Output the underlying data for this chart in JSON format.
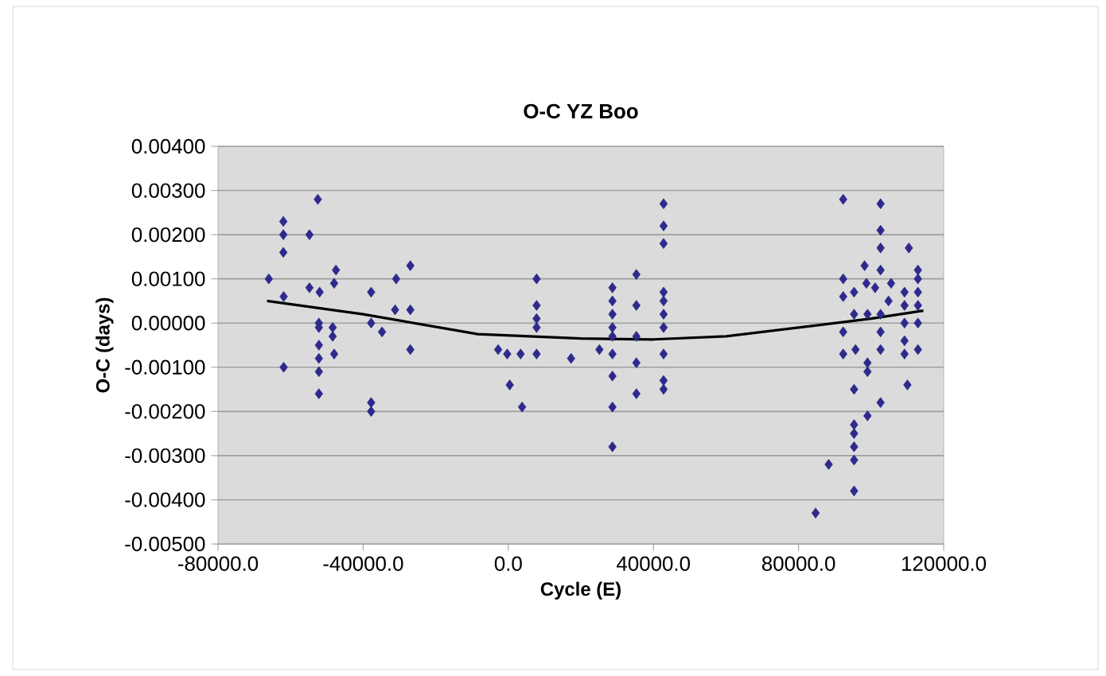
{
  "chart_data": {
    "type": "scatter",
    "title": "O-C YZ Boo",
    "xlabel": "Cycle (E)",
    "ylabel": "O-C (days)",
    "xlim": [
      -80000,
      120000
    ],
    "ylim": [
      -0.005,
      0.004
    ],
    "xticks": [
      {
        "value": -80000,
        "label": "-80000.0"
      },
      {
        "value": -40000,
        "label": "-40000.0"
      },
      {
        "value": 0,
        "label": "0.0"
      },
      {
        "value": 40000,
        "label": "40000.0"
      },
      {
        "value": 80000,
        "label": "80000.0"
      },
      {
        "value": 120000,
        "label": "120000.0"
      }
    ],
    "yticks": [
      {
        "value": 0.004,
        "label": "0.00400"
      },
      {
        "value": 0.003,
        "label": "0.00300"
      },
      {
        "value": 0.002,
        "label": "0.00200"
      },
      {
        "value": 0.001,
        "label": "0.00100"
      },
      {
        "value": 0,
        "label": "0.00000"
      },
      {
        "value": -0.001,
        "label": "-0.00100"
      },
      {
        "value": -0.002,
        "label": "-0.00200"
      },
      {
        "value": -0.003,
        "label": "-0.00300"
      },
      {
        "value": -0.004,
        "label": "-0.00400"
      },
      {
        "value": -0.005,
        "label": "-0.00500"
      }
    ],
    "grid": "y",
    "marker": "diamond",
    "series": [
      {
        "color": "#2e2a8c",
        "x": [
          -52500,
          -62000,
          -62000,
          -62000,
          -54800,
          -66000,
          -61900,
          -61900,
          -54800,
          -52000,
          -47500,
          -48000,
          -52200,
          -52200,
          -48400,
          -48400,
          -52200,
          -48000,
          -52200,
          -52200,
          -52200,
          -37800,
          -37800,
          -34800,
          -37800,
          -37800,
          -30900,
          -31200,
          -27000,
          -27000,
          -27000,
          -2800,
          -300,
          3400,
          400,
          3800,
          7800,
          7800,
          7800,
          7800,
          7800,
          17300,
          25100,
          28700,
          28700,
          28700,
          28700,
          28700,
          28700,
          28700,
          28700,
          28700,
          35300,
          35300,
          35300,
          35300,
          35300,
          42800,
          42800,
          42800,
          42800,
          42800,
          42800,
          42800,
          42800,
          42800,
          42800,
          92300,
          102600,
          102600,
          102600,
          110400,
          92300,
          92300,
          95300,
          98200,
          98700,
          101100,
          102600,
          105500,
          104800,
          102600,
          102600,
          99000,
          95300,
          92300,
          92300,
          95700,
          102600,
          99000,
          99000,
          95300,
          102600,
          99000,
          95300,
          95300,
          95300,
          95300,
          95300,
          88300,
          84700,
          112900,
          112900,
          112900,
          109200,
          109200,
          112900,
          109200,
          112900,
          109200,
          112900,
          109200,
          110000
        ],
        "values": [
          0.0028,
          0.0023,
          0.002,
          0.0016,
          0.002,
          0.001,
          0.0006,
          -0.001,
          0.0008,
          0.0007,
          0.0012,
          0.0009,
          0.0,
          -0.0001,
          -0.0001,
          -0.0003,
          -0.0005,
          -0.0007,
          -0.0008,
          -0.0011,
          -0.0016,
          0.0007,
          0.0,
          -0.0002,
          -0.0018,
          -0.002,
          0.001,
          0.0003,
          0.0003,
          0.0013,
          -0.0006,
          -0.0006,
          -0.0007,
          -0.0007,
          -0.0014,
          -0.0019,
          0.001,
          0.0004,
          0.0001,
          -0.0001,
          -0.0007,
          -0.0008,
          -0.0006,
          0.0008,
          0.0005,
          0.0002,
          -0.0001,
          -0.0003,
          -0.0007,
          -0.0012,
          -0.0019,
          -0.0028,
          0.0011,
          0.0004,
          -0.0003,
          -0.0009,
          -0.0016,
          0.0027,
          0.0022,
          0.0018,
          0.0007,
          0.0005,
          0.0002,
          -0.0001,
          -0.0007,
          -0.0013,
          -0.0015,
          0.0028,
          0.0027,
          0.0021,
          0.0017,
          0.0017,
          0.001,
          0.0006,
          0.0007,
          0.0013,
          0.0009,
          0.0008,
          0.0012,
          0.0009,
          0.0005,
          0.0002,
          -0.0002,
          0.0002,
          0.0002,
          -0.0002,
          -0.0007,
          -0.0006,
          -0.0006,
          -0.0009,
          -0.0011,
          -0.0015,
          -0.0018,
          -0.0021,
          -0.0023,
          -0.0025,
          -0.0028,
          -0.0031,
          -0.0038,
          -0.0032,
          -0.0043,
          0.0012,
          0.001,
          0.0007,
          0.0007,
          0.0004,
          0.0004,
          0.0,
          0.0,
          -0.0004,
          -0.0006,
          -0.0007,
          -0.0014
        ]
      },
      {
        "type": "line",
        "color": "#000000",
        "marker": "none",
        "x": [
          -66500,
          -40000,
          -8400,
          20000,
          40000,
          60000,
          80000,
          100000,
          114400
        ],
        "values": [
          0.0005,
          0.0002,
          -0.00025,
          -0.00035,
          -0.00037,
          -0.0003,
          -0.0001,
          0.0001,
          0.00028
        ]
      }
    ]
  }
}
